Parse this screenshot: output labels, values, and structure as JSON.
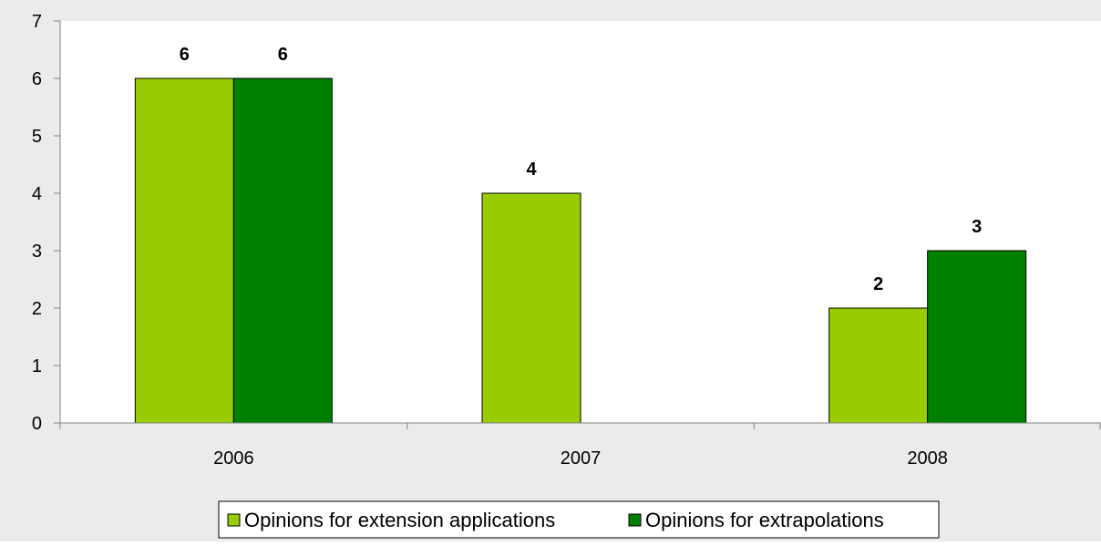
{
  "chart_data": {
    "type": "bar",
    "title": "",
    "xlabel": "",
    "ylabel": "",
    "categories": [
      "2006",
      "2007",
      "2008"
    ],
    "series": [
      {
        "name": "Opinions for extension applications",
        "color": "#99cc00",
        "values": [
          6,
          4,
          2
        ]
      },
      {
        "name": "Opinions for extrapolations",
        "color": "#008000",
        "values": [
          6,
          null,
          3
        ]
      }
    ],
    "ylim": [
      0,
      7
    ],
    "yticks": [
      "0",
      "1",
      "2",
      "3",
      "4",
      "5",
      "6",
      "7"
    ],
    "data_labels": [
      [
        "6",
        "4",
        "2"
      ],
      [
        "6",
        "",
        "3"
      ]
    ],
    "legend": {
      "position": "bottom",
      "entries": [
        "Opinions for extension applications",
        "Opinions for extrapolations"
      ]
    },
    "grid": false,
    "background_color": "#ebebeb"
  }
}
